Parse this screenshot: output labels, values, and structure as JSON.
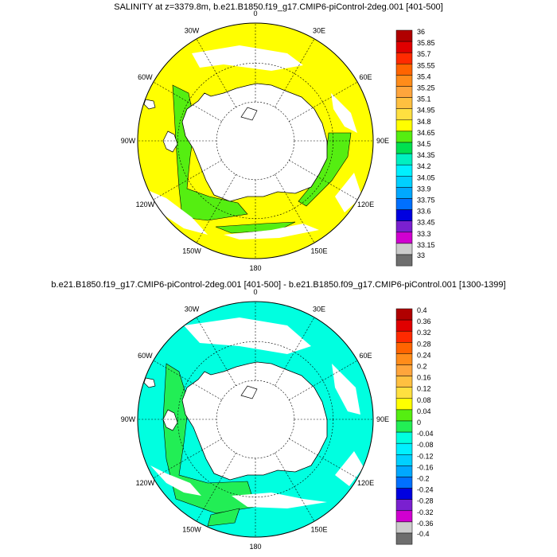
{
  "panels": [
    {
      "title": "SALINITY at z=3379.8m, b.e21.B1850.f19_g17.CMIP6-piControl-2deg.001 [401-500]",
      "lon_labels": [
        "0",
        "30E",
        "60E",
        "90E",
        "120E",
        "150E",
        "180",
        "150W",
        "120W",
        "90W",
        "60W",
        "30W"
      ],
      "colorbar": {
        "levels": [
          "36",
          "35.85",
          "35.7",
          "35.55",
          "35.4",
          "35.25",
          "35.1",
          "34.95",
          "34.8",
          "34.65",
          "34.5",
          "34.35",
          "34.2",
          "34.05",
          "33.9",
          "33.75",
          "33.6",
          "33.45",
          "33.3",
          "33.15",
          "33"
        ],
        "colors": [
          "#b00000",
          "#e00000",
          "#ff2a00",
          "#ff6400",
          "#ff8c1a",
          "#ffa53c",
          "#ffc040",
          "#ffe040",
          "#ffff00",
          "#55ee11",
          "#00e050",
          "#00f0c0",
          "#00f0ff",
          "#00d0ff",
          "#00a8ff",
          "#0070ff",
          "#0000e0",
          "#7a20d0",
          "#d000d0",
          "#cccccc",
          "#6e6e6e"
        ]
      },
      "map_fill": {
        "ocean": "#ffff00",
        "accent": "#55ee11"
      }
    },
    {
      "title": "b.e21.B1850.f19_g17.CMIP6-piControl-2deg.001 [401-500] - b.e21.B1850.f09_g17.CMIP6-piControl.001 [1300-1399]",
      "lon_labels": [
        "0",
        "30E",
        "60E",
        "90E",
        "120E",
        "150E",
        "180",
        "150W",
        "120W",
        "90W",
        "60W",
        "30W"
      ],
      "colorbar": {
        "levels": [
          "0.4",
          "0.36",
          "0.32",
          "0.28",
          "0.24",
          "0.2",
          "0.16",
          "0.12",
          "0.08",
          "0.04",
          "0",
          "-0.04",
          "-0.08",
          "-0.12",
          "-0.16",
          "-0.2",
          "-0.24",
          "-0.28",
          "-0.32",
          "-0.36",
          "-0.4"
        ],
        "colors": [
          "#b00000",
          "#e00000",
          "#ff2a00",
          "#ff6400",
          "#ff8c1a",
          "#ffa53c",
          "#ffc040",
          "#ffe040",
          "#ffff00",
          "#55ee11",
          "#22ee55",
          "#00ffe0",
          "#00f0ff",
          "#00d0ff",
          "#00a8ff",
          "#0070ff",
          "#0000e0",
          "#7a20d0",
          "#d000d0",
          "#cccccc",
          "#6e6e6e"
        ]
      },
      "map_fill": {
        "ocean": "#00ffe0",
        "accent": "#22ee55"
      }
    }
  ]
}
